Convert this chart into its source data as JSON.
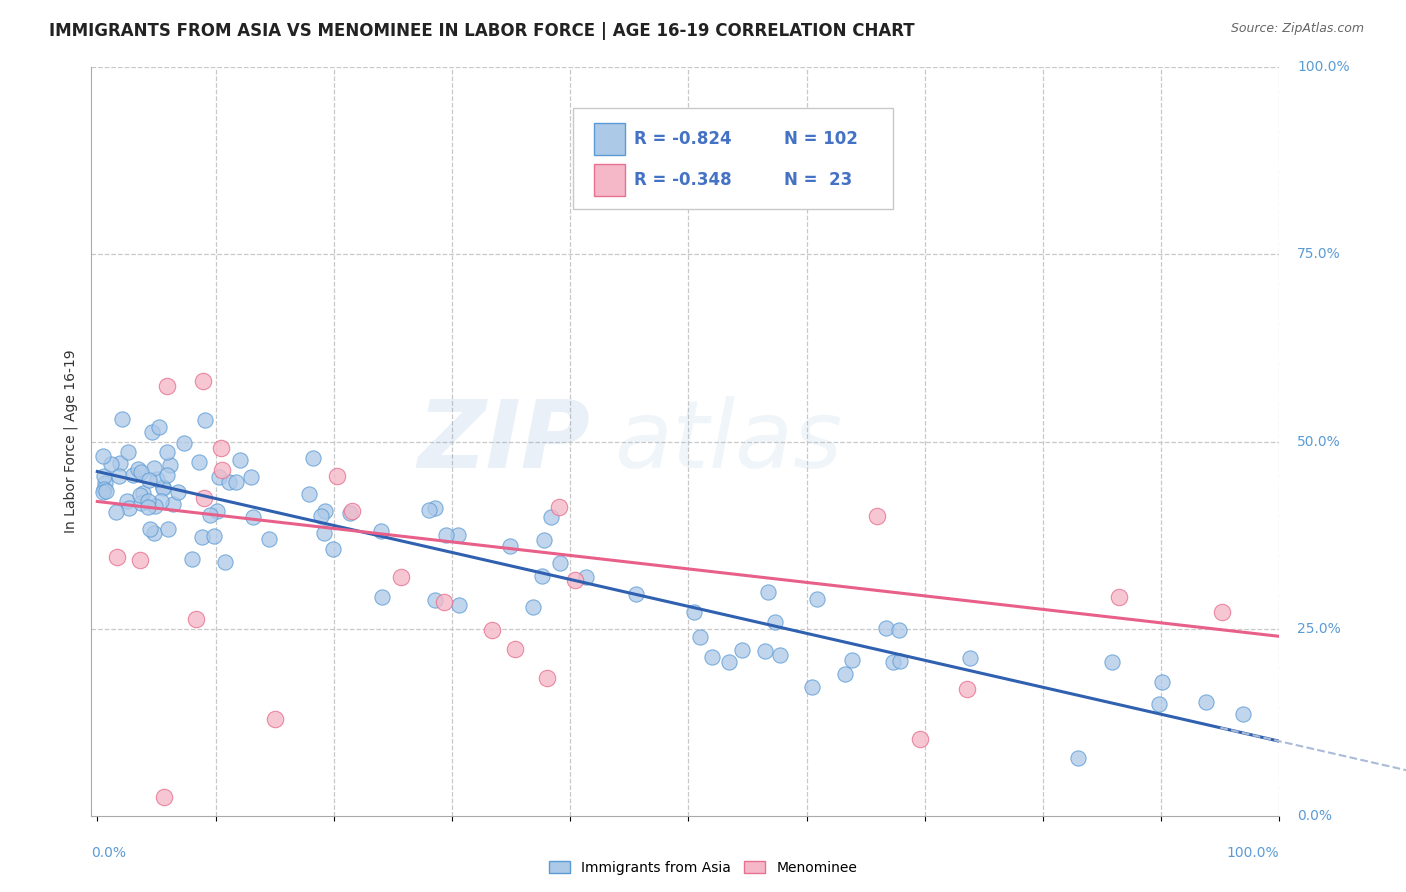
{
  "title": "IMMIGRANTS FROM ASIA VS MENOMINEE IN LABOR FORCE | AGE 16-19 CORRELATION CHART",
  "source": "Source: ZipAtlas.com",
  "ylabel": "In Labor Force | Age 16-19",
  "ytick_labels": [
    "0.0%",
    "25.0%",
    "50.0%",
    "75.0%",
    "100.0%"
  ],
  "ytick_values": [
    0,
    25,
    50,
    75,
    100
  ],
  "xlim": [
    0,
    100
  ],
  "ylim": [
    0,
    100
  ],
  "blue_scatter_color": "#adc9e8",
  "blue_edge_color": "#5b9bd5",
  "pink_scatter_color": "#f4b8c8",
  "pink_edge_color": "#e87090",
  "trend_blue": "#3060b0",
  "trend_pink": "#e8608a",
  "trend_blue_dash": "#aabbd8",
  "background_color": "#ffffff",
  "grid_color": "#c8c8c8",
  "title_color": "#222222",
  "tick_color": "#5b9bd5",
  "legend_r_color": "#4472c4",
  "legend_n_color": "#4472c4",
  "watermark_zip_color": "#6090c8",
  "watermark_atlas_color": "#90b8d8",
  "blue_line_y0": 46,
  "blue_line_y1": 10,
  "pink_line_y0": 42,
  "pink_line_y1": 24,
  "title_fontsize": 12,
  "source_fontsize": 9,
  "axis_label_fontsize": 10,
  "tick_fontsize": 10,
  "legend_fontsize": 12
}
